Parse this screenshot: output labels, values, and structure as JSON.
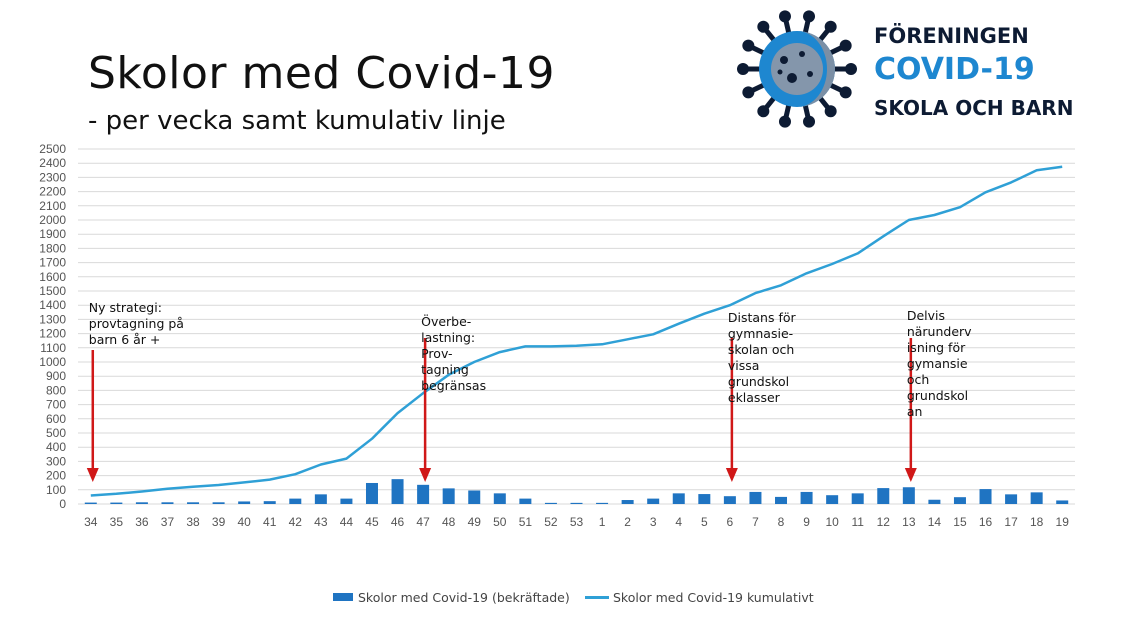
{
  "title": "Skolor med Covid-19",
  "subtitle": "- per vecka samt kumulativ linje",
  "logo": {
    "line1": "FÖRENINGEN",
    "line2": "COVID-19",
    "line3": "SKOLA OCH BARN"
  },
  "chart_data": {
    "type": "bar",
    "categories": [
      "34",
      "35",
      "36",
      "37",
      "38",
      "39",
      "40",
      "41",
      "42",
      "43",
      "44",
      "45",
      "46",
      "47",
      "48",
      "49",
      "50",
      "51",
      "52",
      "53",
      "1",
      "2",
      "3",
      "4",
      "5",
      "6",
      "7",
      "8",
      "9",
      "10",
      "11",
      "12",
      "13",
      "14",
      "15",
      "16",
      "17",
      "18",
      "19"
    ],
    "series": [
      {
        "name": "Skolor med Covid-19 (bekräftade)",
        "type": "bar",
        "color": "#1f74c2",
        "values": [
          10,
          10,
          12,
          12,
          12,
          12,
          18,
          20,
          38,
          68,
          38,
          148,
          175,
          135,
          110,
          95,
          75,
          38,
          8,
          8,
          8,
          28,
          38,
          75,
          70,
          55,
          85,
          50,
          85,
          62,
          75,
          112,
          118,
          30,
          48,
          105,
          68,
          82,
          25
        ]
      },
      {
        "name": "Skolor med Covid-19 kumulativt",
        "type": "line",
        "color": "#2fa0d6",
        "values": [
          60,
          72,
          88,
          108,
          122,
          134,
          152,
          172,
          210,
          278,
          320,
          460,
          640,
          780,
          910,
          1000,
          1070,
          1110,
          1110,
          1115,
          1125,
          1160,
          1195,
          1270,
          1340,
          1400,
          1485,
          1540,
          1625,
          1690,
          1765,
          1885,
          2000,
          2035,
          2090,
          2195,
          2265,
          2350,
          2375
        ]
      }
    ],
    "ylim": [
      0,
      2500
    ],
    "yticks": [
      0,
      100,
      200,
      300,
      400,
      500,
      600,
      700,
      800,
      900,
      1000,
      1100,
      1200,
      1300,
      1400,
      1500,
      1600,
      1700,
      1800,
      1900,
      2000,
      2100,
      2200,
      2300,
      2400,
      2500
    ],
    "grid": true,
    "legend_position": "bottom",
    "annotations": [
      {
        "category": "34",
        "text": "Ny strategi:\nprovtagning på\nbarn 6 år +"
      },
      {
        "category": "47",
        "text": "Överbe-\nlastning:\nProv-\ntagning\nbegränsas"
      },
      {
        "category": "6",
        "text": "Distans för\ngymnasie-\nskolan och\nvissa\ngrundskol\neklasser"
      },
      {
        "category": "13",
        "text": "Delvis\nnärunderv\nisning för\ngymansie\noch\ngrundskol\nan"
      }
    ]
  }
}
